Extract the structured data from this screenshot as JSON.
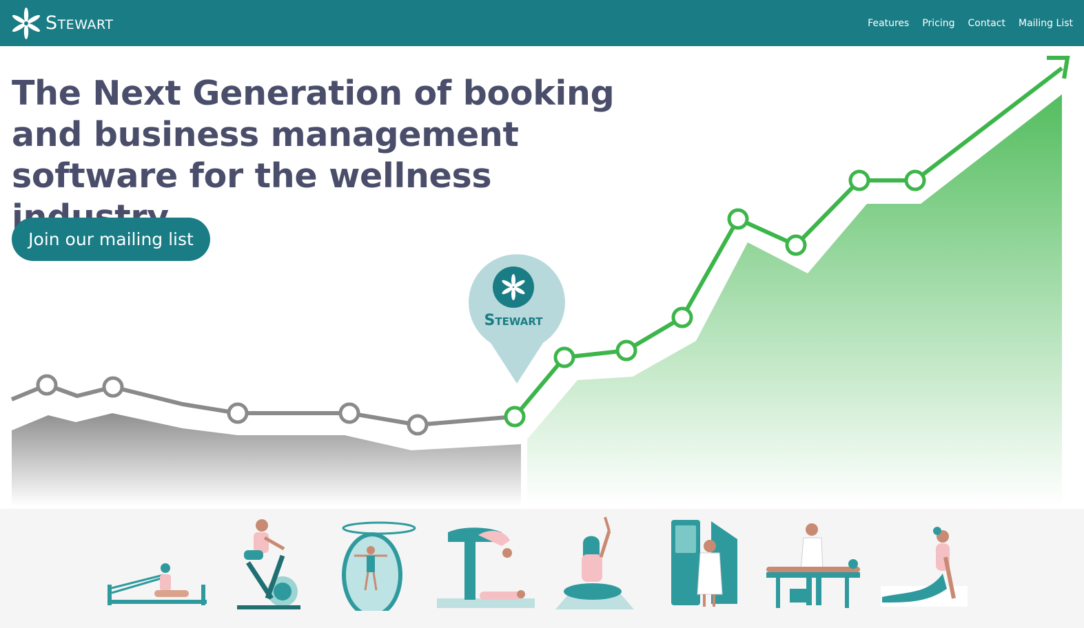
{
  "brand": {
    "name": "Stewart",
    "icon": "flower-icon"
  },
  "nav": {
    "items": [
      {
        "label": "Features"
      },
      {
        "label": "Pricing"
      },
      {
        "label": "Contact"
      },
      {
        "label": "Mailing List"
      }
    ]
  },
  "hero": {
    "title": "The Next Generation of booking and business management software for the wellness industry.",
    "cta_label": "Join our mailing list"
  },
  "pin": {
    "label": "Stewart",
    "icon": "flower-icon"
  },
  "colors": {
    "brand": "#1a7c84",
    "heading": "#4a4e6a",
    "grey_line": "#8a8a8a",
    "green_line": "#3cb54a",
    "pin_bg": "#b8d9dc"
  },
  "illustrations": [
    {
      "name": "reformer-pilates-illustration"
    },
    {
      "name": "spin-bike-illustration"
    },
    {
      "name": "flotation-pod-illustration"
    },
    {
      "name": "acro-yoga-illustration"
    },
    {
      "name": "meditation-yoga-illustration"
    },
    {
      "name": "sauna-booth-illustration"
    },
    {
      "name": "massage-therapy-illustration"
    },
    {
      "name": "cobra-stretch-illustration"
    }
  ]
}
